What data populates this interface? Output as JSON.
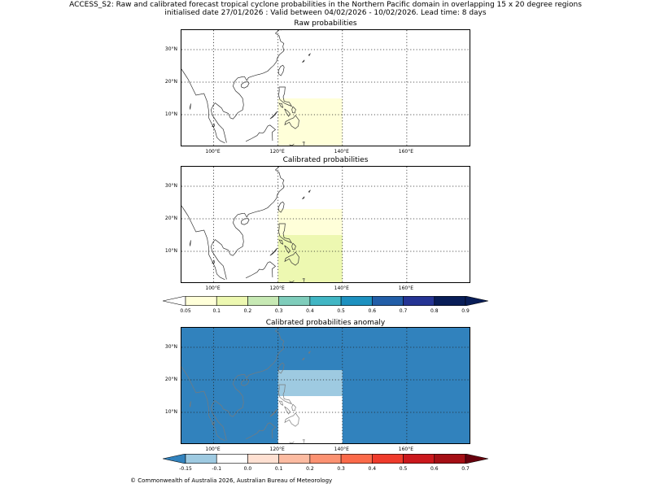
{
  "figure": {
    "title_line1": "ACCESS_S2: Raw and calibrated forecast tropical cyclone probabilities in the Northern Pacific domain in overlapping 15 x 20 degree regions",
    "title_line2": "initialised date 27/01/2026 :  Valid between 04/02/2026 - 10/02/2026. Lead time: 8 days",
    "copyright": "© Commonwealth of Australia 2026, Australian Bureau of Meteorology"
  },
  "axes": {
    "lat_ticks": [
      "30°N",
      "20°N",
      "10°N"
    ],
    "lat_values": [
      30,
      20,
      10
    ],
    "lon_ticks": [
      "100°E",
      "120°E",
      "140°E",
      "160°E"
    ],
    "lon_values": [
      100,
      120,
      140,
      160
    ],
    "lon_range": [
      90,
      180
    ],
    "lat_range": [
      0,
      36
    ]
  },
  "chart_data": [
    {
      "type": "heatmap",
      "title": "Raw probabilities",
      "cells": [
        {
          "lon": [
            120,
            140
          ],
          "lat": [
            0,
            15
          ],
          "value": 0.05,
          "color": "#ffffd9"
        }
      ]
    },
    {
      "type": "heatmap",
      "title": "Calibrated probabilities",
      "cells": [
        {
          "lon": [
            120,
            140
          ],
          "lat": [
            15,
            23
          ],
          "value": 0.05,
          "color": "#ffffd9"
        },
        {
          "lon": [
            120,
            140
          ],
          "lat": [
            0,
            15
          ],
          "value": 0.1,
          "color": "#edf8b1"
        }
      ]
    },
    {
      "type": "heatmap",
      "title": "Calibrated probabilities anomaly",
      "background_color": "#3182bd",
      "cells": [
        {
          "lon": [
            120,
            140
          ],
          "lat": [
            15,
            23
          ],
          "value": -0.15,
          "color": "#9ecae1"
        },
        {
          "lon": [
            120,
            140
          ],
          "lat": [
            0,
            15
          ],
          "value": 0.0,
          "color": "#ffffff"
        }
      ]
    }
  ],
  "colorbars": {
    "probability": {
      "labels": [
        "0.05",
        "0.1",
        "0.2",
        "0.3",
        "0.4",
        "0.5",
        "0.6",
        "0.7",
        "0.8",
        "0.9"
      ],
      "colors": [
        "#ffffd9",
        "#edf8b1",
        "#c7e9b4",
        "#7fcdbb",
        "#41b6c4",
        "#1d91c0",
        "#225ea8",
        "#253494",
        "#081d58"
      ],
      "under_color": "#ffffff",
      "over_color": "#081d58"
    },
    "anomaly": {
      "labels": [
        "-0.15",
        "-0.1",
        "0.0",
        "0.1",
        "0.2",
        "0.3",
        "0.4",
        "0.5",
        "0.6",
        "0.7"
      ],
      "colors": [
        "#9ecae1",
        "#ffffff",
        "#fee0d2",
        "#fcbba1",
        "#fc9272",
        "#fb6a4a",
        "#ef3b2c",
        "#cb181d",
        "#a50f15"
      ],
      "under_color": "#3182bd",
      "over_color": "#67000d"
    }
  }
}
